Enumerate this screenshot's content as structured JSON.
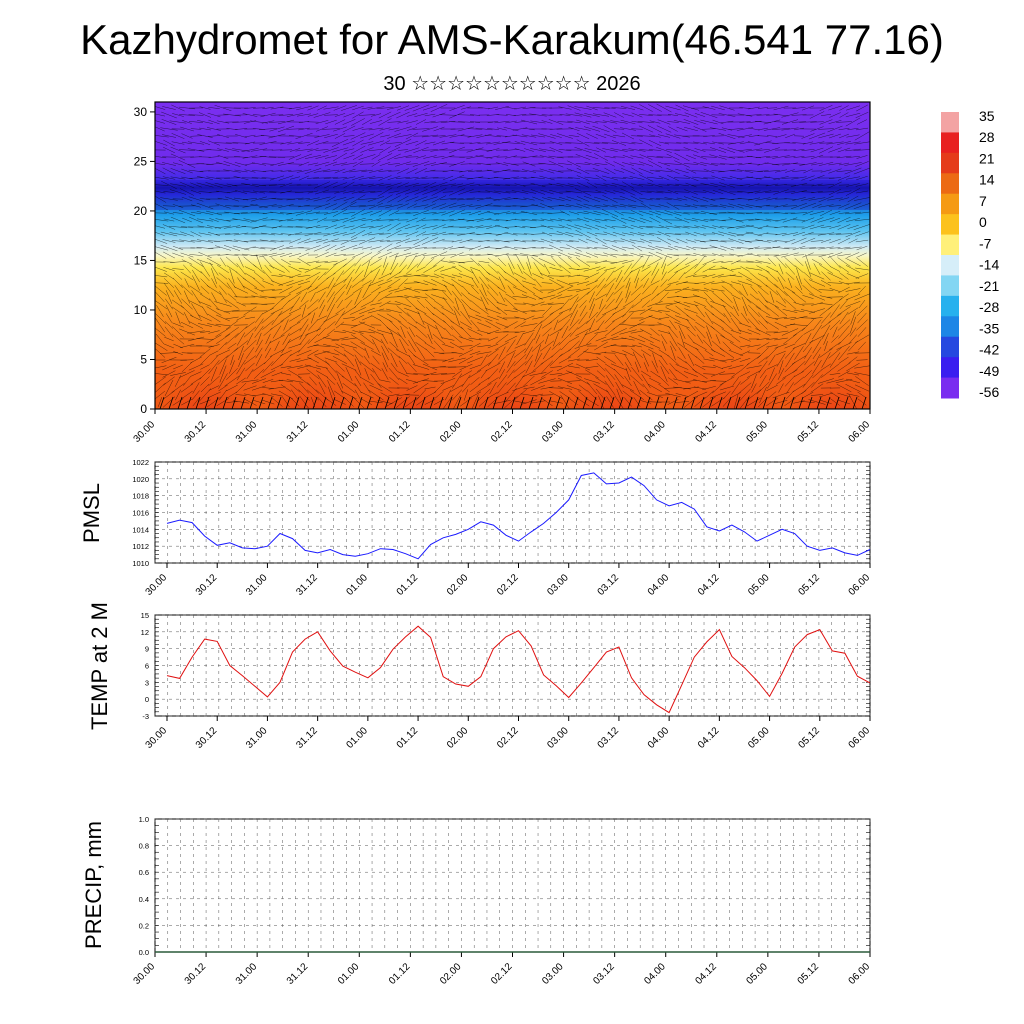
{
  "title": "Kazhydromet for AMS-Karakum(46.541 77.16)",
  "subtitle": "30 ☆☆☆☆☆☆☆☆☆☆ 2026",
  "x_ticks": [
    "30.00",
    "30.12",
    "31.00",
    "31.12",
    "01.00",
    "01.12",
    "02.00",
    "02.12",
    "03.00",
    "03.12",
    "04.00",
    "04.12",
    "05.00",
    "05.12",
    "06.00"
  ],
  "colors": {
    "pmsl_line": "#1a1aff",
    "temp_line": "#e01010",
    "precip_line": "#2a5a3a"
  },
  "colorbar": {
    "labels": [
      "35",
      "28",
      "21",
      "14",
      "7",
      "0",
      "-7",
      "-14",
      "-21",
      "-28",
      "-35",
      "-42",
      "-49",
      "-56"
    ],
    "colors": [
      "#f3a3a3",
      "#e82020",
      "#e53b1a",
      "#ec6a14",
      "#f59a14",
      "#fcc21d",
      "#fff07a",
      "#d6eef9",
      "#83d6f3",
      "#27b1ee",
      "#1d86e6",
      "#2548e0",
      "#3a1ef0",
      "#7a2df0"
    ]
  },
  "chart_data": [
    {
      "type": "heatmap",
      "name": "cross-section",
      "ylim": [
        0,
        31
      ],
      "yticks": [
        0,
        5,
        10,
        15,
        20,
        25,
        30
      ],
      "x": [
        "30.00",
        "30.12",
        "31.00",
        "31.12",
        "01.00",
        "01.12",
        "02.00",
        "02.12",
        "03.00",
        "03.12",
        "04.00",
        "04.12",
        "05.00",
        "05.12",
        "06.00"
      ],
      "value_range": [
        -56,
        35
      ],
      "overlay": "wind vectors"
    },
    {
      "type": "line",
      "ylabel": "PMSL",
      "ylim": [
        1010,
        1022
      ],
      "yticks": [
        1010,
        1012,
        1014,
        1016,
        1018,
        1020,
        1022
      ],
      "series": [
        {
          "values": [
            1014.7,
            1015.1,
            1014.8,
            1013.2,
            1012.1,
            1012.4,
            1011.8,
            1011.7,
            1012.0,
            1013.5,
            1012.9,
            1011.5,
            1011.2,
            1011.6,
            1011.0,
            1010.8,
            1011.1,
            1011.7,
            1011.6,
            1011.1,
            1010.5,
            1012.2,
            1013.0,
            1013.4,
            1014.0,
            1014.9,
            1014.5,
            1013.3,
            1012.6,
            1013.7,
            1014.7,
            1016.0,
            1017.5,
            1020.4,
            1020.7,
            1019.4,
            1019.5,
            1020.2,
            1019.2,
            1017.5,
            1016.8,
            1017.2,
            1016.4,
            1014.3,
            1013.8,
            1014.5,
            1013.7,
            1012.6,
            1013.3,
            1014.0,
            1013.5,
            1012.0,
            1011.5,
            1011.8,
            1011.2,
            1010.9,
            1011.6
          ]
        }
      ]
    },
    {
      "type": "line",
      "ylabel": "TEMP at 2 M",
      "ylim": [
        -3,
        15
      ],
      "yticks": [
        -3,
        0,
        3,
        6,
        9,
        12,
        15
      ],
      "series": [
        {
          "values": [
            4.2,
            3.7,
            7.5,
            10.7,
            10.3,
            6.0,
            4.2,
            2.3,
            0.4,
            3.0,
            8.4,
            10.7,
            12.0,
            8.6,
            5.9,
            4.8,
            3.8,
            5.6,
            8.9,
            11.1,
            13.0,
            11.0,
            4.0,
            2.7,
            2.3,
            4.0,
            9.0,
            11.1,
            12.2,
            9.5,
            4.3,
            2.4,
            0.3,
            2.9,
            5.6,
            8.4,
            9.3,
            3.8,
            0.8,
            -1.0,
            -2.4,
            2.5,
            7.5,
            10.2,
            12.4,
            7.6,
            5.6,
            3.3,
            0.5,
            4.6,
            9.3,
            11.5,
            12.4,
            8.6,
            8.2,
            4.1,
            2.9
          ]
        }
      ]
    },
    {
      "type": "line",
      "ylabel": "PRECIP, mm",
      "ylim": [
        0,
        1
      ],
      "yticks": [
        0.0,
        0.2,
        0.4,
        0.6,
        0.8,
        1.0
      ],
      "series": [
        {
          "values": [
            0,
            0,
            0,
            0,
            0,
            0,
            0,
            0,
            0,
            0,
            0,
            0,
            0,
            0,
            0,
            0,
            0,
            0,
            0,
            0,
            0,
            0,
            0,
            0,
            0,
            0,
            0,
            0,
            0,
            0,
            0,
            0,
            0,
            0,
            0,
            0,
            0,
            0,
            0,
            0,
            0,
            0,
            0,
            0,
            0,
            0,
            0,
            0,
            0,
            0,
            0,
            0,
            0,
            0,
            0,
            0,
            0
          ]
        }
      ]
    }
  ]
}
